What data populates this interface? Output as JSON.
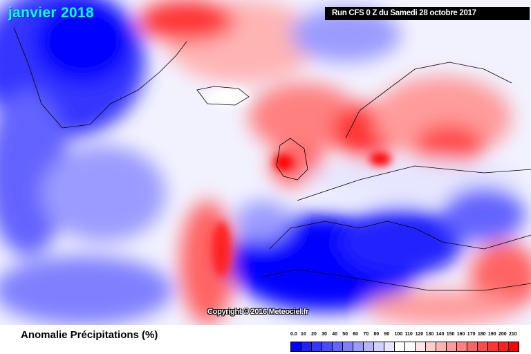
{
  "map": {
    "month_title": "janvier 2018",
    "run_label": "Run CFS 0 Z du Samedi 28 octobre 2017",
    "copyright": "Copyright © 2016 Meteociel.fr"
  },
  "legend": {
    "title": "Anomalie Précipitations (%)",
    "labels": [
      "0.0",
      "10",
      "20",
      "30",
      "40",
      "50",
      "60",
      "70",
      "80",
      "90",
      "100",
      "110",
      "120",
      "130",
      "140",
      "150",
      "160",
      "170",
      "180",
      "190",
      "200",
      "210"
    ],
    "colors": [
      "#0000ff",
      "#2020ff",
      "#3535ff",
      "#4a4aff",
      "#6464ff",
      "#8080ff",
      "#9b9bff",
      "#b4b4ff",
      "#d0d0ff",
      "#e6e6ff",
      "#ffffff",
      "#ffffff",
      "#ffe4e8",
      "#ffcccc",
      "#ffb4b4",
      "#ff9b9b",
      "#ff8080",
      "#ff6464",
      "#ff4a4a",
      "#ff3535",
      "#ff2020",
      "#ff0000"
    ]
  }
}
